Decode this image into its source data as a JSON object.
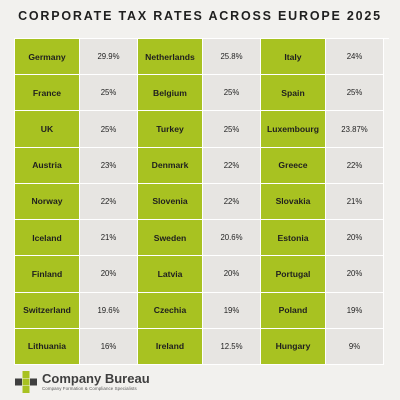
{
  "title": "CORPORATE TAX RATES ACROSS EUROPE 2025",
  "colors": {
    "country_cell": "#a8c221",
    "rate_cell": "#e7e5e2",
    "background": "#f2f1ee"
  },
  "rows": [
    [
      {
        "country": "Germany",
        "rate": "29.9%"
      },
      {
        "country": "Netherlands",
        "rate": "25.8%"
      },
      {
        "country": "Italy",
        "rate": "24%"
      }
    ],
    [
      {
        "country": "France",
        "rate": "25%"
      },
      {
        "country": "Belgium",
        "rate": "25%"
      },
      {
        "country": "Spain",
        "rate": "25%"
      }
    ],
    [
      {
        "country": "UK",
        "rate": "25%"
      },
      {
        "country": "Turkey",
        "rate": "25%"
      },
      {
        "country": "Luxembourg",
        "rate": "23.87%"
      }
    ],
    [
      {
        "country": "Austria",
        "rate": "23%"
      },
      {
        "country": "Denmark",
        "rate": "22%"
      },
      {
        "country": "Greece",
        "rate": "22%"
      }
    ],
    [
      {
        "country": "Norway",
        "rate": "22%"
      },
      {
        "country": "Slovenia",
        "rate": "22%"
      },
      {
        "country": "Slovakia",
        "rate": "21%"
      }
    ],
    [
      {
        "country": "Iceland",
        "rate": "21%"
      },
      {
        "country": "Sweden",
        "rate": "20.6%"
      },
      {
        "country": "Estonia",
        "rate": "20%"
      }
    ],
    [
      {
        "country": "Finland",
        "rate": "20%"
      },
      {
        "country": "Latvia",
        "rate": "20%"
      },
      {
        "country": "Portugal",
        "rate": "20%"
      }
    ],
    [
      {
        "country": "Switzerland",
        "rate": "19.6%"
      },
      {
        "country": "Czechia",
        "rate": "19%"
      },
      {
        "country": "Poland",
        "rate": "19%"
      }
    ],
    [
      {
        "country": "Lithuania",
        "rate": "16%"
      },
      {
        "country": "Ireland",
        "rate": "12.5%"
      },
      {
        "country": "Hungary",
        "rate": "9%"
      }
    ]
  ],
  "footer": {
    "brand": "Company Bureau",
    "tagline": "Company Formation & Compliance Specialists",
    "logo_icon": "cross-logo-icon"
  }
}
